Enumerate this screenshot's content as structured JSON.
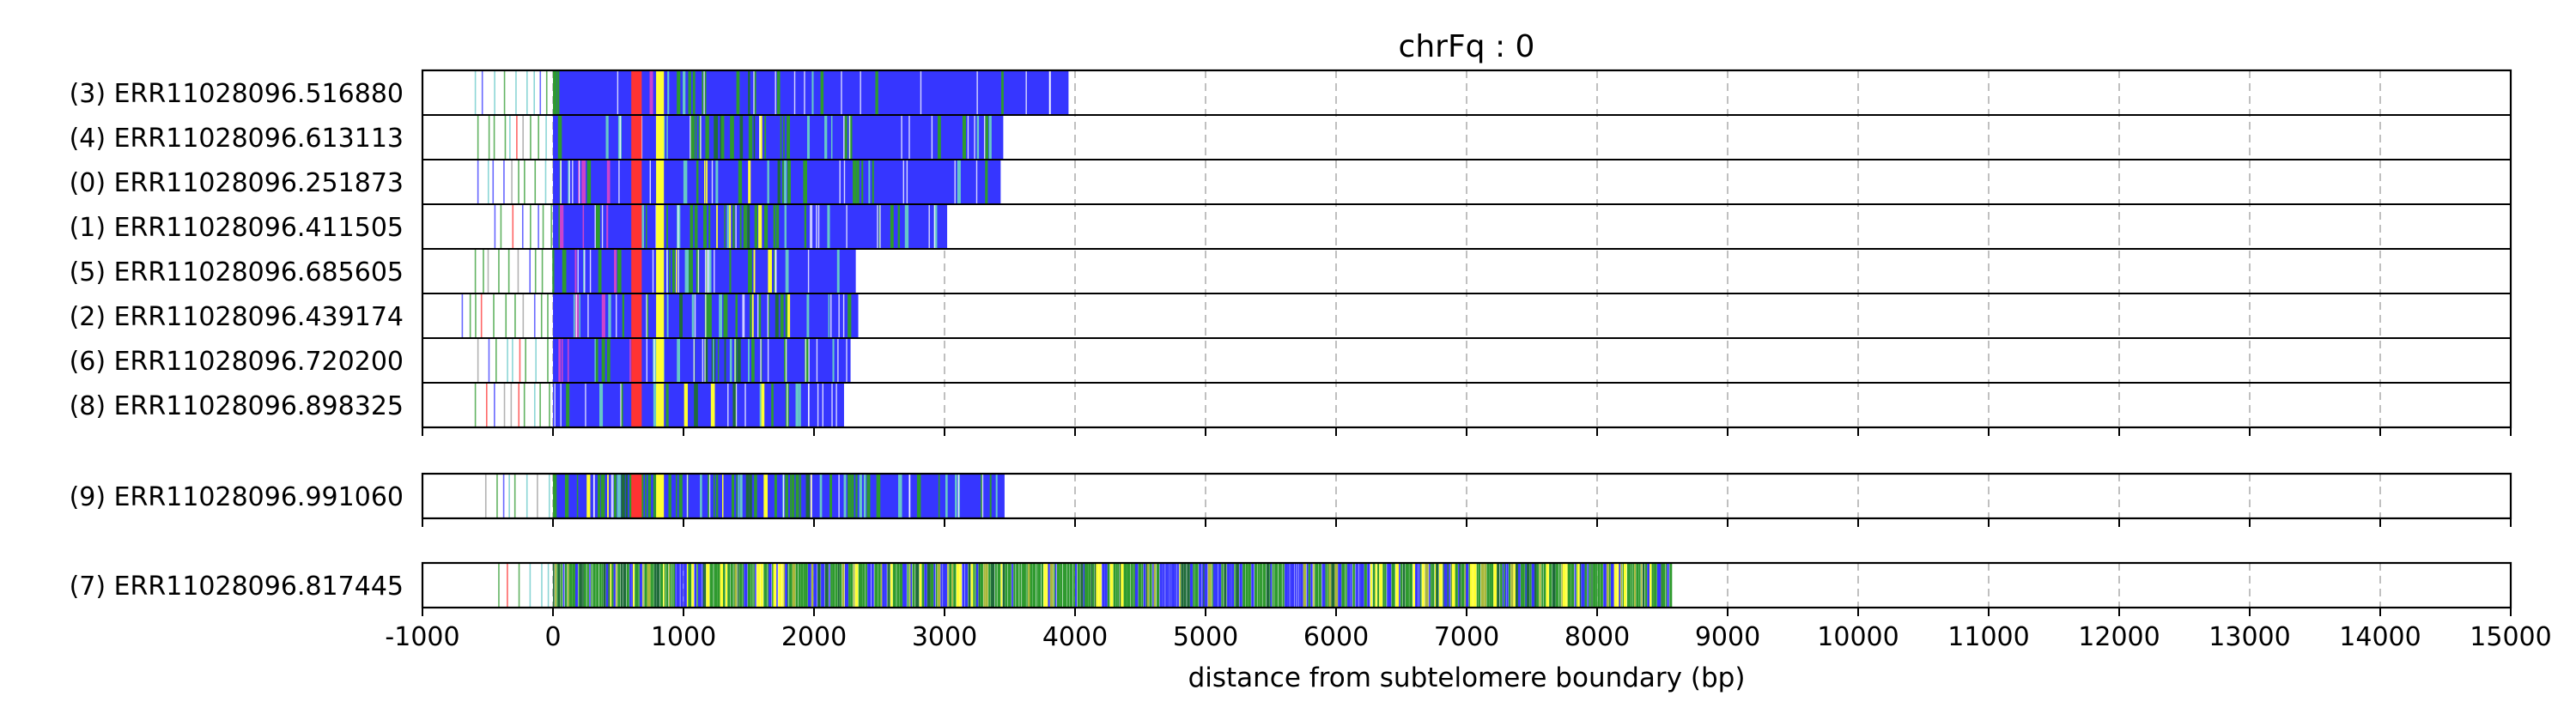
{
  "chart_data": {
    "type": "bar",
    "title": "chrFq : 0",
    "xlabel": "distance from subtelomere boundary (bp)",
    "xlim": [
      -1000,
      15000
    ],
    "xticks": [
      -1000,
      0,
      1000,
      2000,
      3000,
      4000,
      5000,
      6000,
      7000,
      8000,
      9000,
      10000,
      11000,
      12000,
      13000,
      14000,
      15000
    ],
    "grid": "vertical dashed",
    "groups": [
      {
        "reads": [
          {
            "label": "(3) ERR11028096.516880",
            "start": -600,
            "dense_start": 0,
            "end": 3950,
            "profile": "blue"
          },
          {
            "label": "(4) ERR11028096.613113",
            "start": -580,
            "dense_start": 0,
            "end": 3450,
            "profile": "blue"
          },
          {
            "label": "(0) ERR11028096.251873",
            "start": -580,
            "dense_start": 0,
            "end": 3430,
            "profile": "blue"
          },
          {
            "label": "(1) ERR11028096.411505",
            "start": -450,
            "dense_start": 0,
            "end": 3020,
            "profile": "blue"
          },
          {
            "label": "(5) ERR11028096.685605",
            "start": -600,
            "dense_start": 0,
            "end": 2320,
            "profile": "blue"
          },
          {
            "label": "(2) ERR11028096.439174",
            "start": -700,
            "dense_start": 0,
            "end": 2340,
            "profile": "blue"
          },
          {
            "label": "(6) ERR11028096.720200",
            "start": -580,
            "dense_start": 0,
            "end": 2280,
            "profile": "blue"
          },
          {
            "label": "(8) ERR11028096.898325",
            "start": -600,
            "dense_start": 0,
            "end": 2230,
            "profile": "blue"
          }
        ]
      },
      {
        "reads": [
          {
            "label": "(9) ERR11028096.991060",
            "start": -520,
            "dense_start": 0,
            "end": 3460,
            "profile": "mixed"
          }
        ]
      },
      {
        "reads": [
          {
            "label": "(7) ERR11028096.817445",
            "start": -420,
            "dense_start": 0,
            "end": 8570,
            "profile": "green"
          }
        ]
      }
    ],
    "colors": {
      "blue": "#3636ff",
      "green": "#2e9a2e",
      "yellow": "#ffff33",
      "red": "#ff3333",
      "cyan": "#66c8c8",
      "magenta": "#cc44cc",
      "darkgreen": "#1f6b3a",
      "olive": "#a9b83a"
    }
  }
}
